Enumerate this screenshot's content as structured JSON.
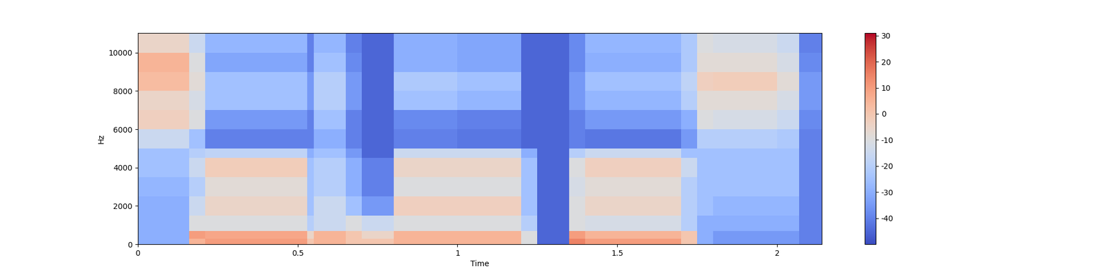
{
  "chart_data": {
    "type": "heatmap",
    "xlabel": "Time",
    "ylabel": "Hz",
    "xlim": [
      0,
      2.14
    ],
    "xticks": [
      0,
      0.5,
      1,
      1.5,
      2
    ],
    "ylim": [
      0,
      11025
    ],
    "yticks": [
      0,
      2000,
      4000,
      6000,
      8000,
      10000
    ],
    "x_edges": [
      0,
      0.16,
      0.21,
      0.53,
      0.55,
      0.65,
      0.7,
      0.8,
      1.0,
      1.2,
      1.25,
      1.35,
      1.4,
      1.5,
      1.7,
      1.75,
      1.8,
      2.0,
      2.07,
      2.14
    ],
    "y_edges": [
      0,
      300,
      700,
      1500,
      2500,
      3500,
      4500,
      5000,
      6000,
      7000,
      8000,
      9000,
      10000,
      11025
    ],
    "cells": [
      [
        -30,
        5,
        10,
        0,
        5,
        0,
        0,
        5,
        5,
        -10,
        -45,
        15,
        10,
        10,
        0,
        -30,
        -35,
        -35,
        -40
      ],
      [
        -30,
        10,
        8,
        -5,
        5,
        0,
        -5,
        5,
        5,
        -10,
        -45,
        10,
        5,
        5,
        0,
        -30,
        -35,
        -35,
        -40
      ],
      [
        -30,
        -10,
        -10,
        -20,
        -15,
        -10,
        -15,
        -10,
        -10,
        -20,
        -45,
        -10,
        -12,
        -12,
        -20,
        -30,
        -30,
        -30,
        -40
      ],
      [
        -30,
        -15,
        -5,
        -25,
        -15,
        -25,
        -35,
        -3,
        -3,
        -25,
        -45,
        -10,
        -5,
        -5,
        -20,
        -25,
        -28,
        -28,
        -40
      ],
      [
        -28,
        -20,
        -8,
        -25,
        -20,
        -30,
        -40,
        -10,
        -10,
        -25,
        -45,
        -12,
        -8,
        -8,
        -20,
        -25,
        -25,
        -25,
        -40
      ],
      [
        -25,
        -15,
        -2,
        -25,
        -20,
        -30,
        -40,
        -5,
        -5,
        -25,
        -45,
        -10,
        -3,
        -3,
        -15,
        -25,
        -25,
        -25,
        -40
      ],
      [
        -25,
        -20,
        -18,
        -30,
        -25,
        -35,
        -45,
        -15,
        -15,
        -30,
        -45,
        -20,
        -15,
        -15,
        -25,
        -25,
        -25,
        -25,
        -40
      ],
      [
        -15,
        -25,
        -40,
        -40,
        -30,
        -40,
        -45,
        -40,
        -42,
        -45,
        -45,
        -40,
        -42,
        -42,
        -35,
        -20,
        -20,
        -22,
        -40
      ],
      [
        -3,
        -10,
        -35,
        -40,
        -25,
        -40,
        -45,
        -38,
        -40,
        -45,
        -45,
        -40,
        -35,
        -35,
        -30,
        -10,
        -12,
        -15,
        -38
      ],
      [
        -5,
        -12,
        -25,
        -35,
        -20,
        -35,
        -45,
        -25,
        -28,
        -45,
        -45,
        -35,
        -28,
        -28,
        -20,
        -8,
        -8,
        -12,
        -35
      ],
      [
        3,
        -8,
        -25,
        -35,
        -20,
        -35,
        -45,
        -22,
        -25,
        -45,
        -45,
        -35,
        -25,
        -25,
        -18,
        -3,
        -2,
        -8,
        -35
      ],
      [
        5,
        -10,
        -32,
        -40,
        -25,
        -38,
        -45,
        -30,
        -32,
        -45,
        -45,
        -38,
        -30,
        -30,
        -22,
        -8,
        -8,
        -12,
        -38
      ],
      [
        -5,
        -15,
        -28,
        -40,
        -28,
        -40,
        -45,
        -30,
        -32,
        -45,
        -45,
        -38,
        -28,
        -28,
        -22,
        -10,
        -12,
        -15,
        -40
      ]
    ],
    "colorbar_range": [
      -50,
      31
    ],
    "colorbar_ticks": [
      -40,
      -30,
      -20,
      -10,
      0,
      10,
      20,
      30
    ]
  }
}
